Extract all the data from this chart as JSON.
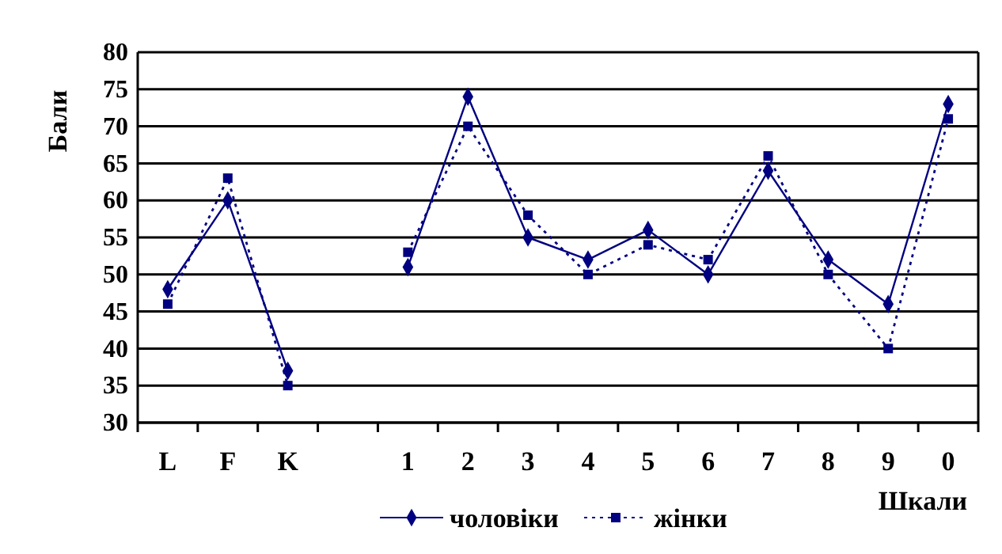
{
  "chart_data": {
    "type": "line",
    "ylabel": "Бали",
    "xlabel": "Шкали",
    "categories": [
      "L",
      "F",
      "K",
      null,
      "1",
      "2",
      "3",
      "4",
      "5",
      "6",
      "7",
      "8",
      "9",
      "0"
    ],
    "series": [
      {
        "name": "чоловіки",
        "color": "#000080",
        "marker": "diamond",
        "line_style": "solid",
        "values": [
          48,
          60,
          37,
          null,
          51,
          74,
          55,
          52,
          56,
          50,
          64,
          52,
          46,
          73
        ]
      },
      {
        "name": "жінки",
        "color": "#000080",
        "marker": "square",
        "line_style": "dotted",
        "values": [
          46,
          63,
          35,
          null,
          53,
          70,
          58,
          50,
          54,
          52,
          66,
          50,
          40,
          71
        ]
      }
    ],
    "ylim": [
      30,
      80
    ],
    "yticks": [
      30,
      35,
      40,
      45,
      50,
      55,
      60,
      65,
      70,
      75,
      80
    ],
    "grid": "y",
    "legend": "bottom"
  }
}
